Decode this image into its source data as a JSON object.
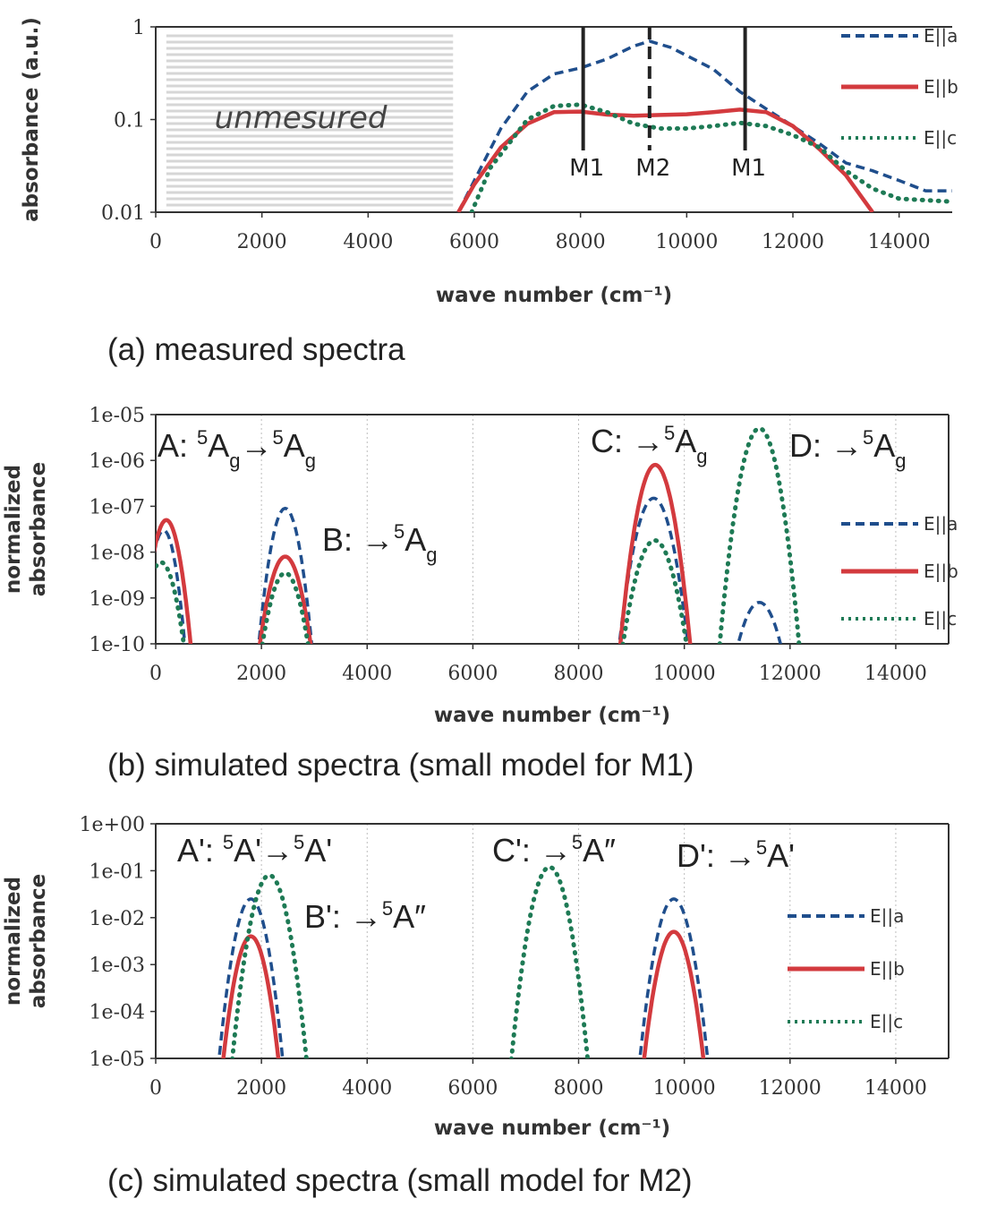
{
  "colors": {
    "a": "#1f4e8c",
    "b": "#d33a3e",
    "c": "#1e7a55",
    "frame": "#333333",
    "grid": "#bdbdbd",
    "hatch": "#d6d6d6"
  },
  "legend": {
    "a": "E||a",
    "b": "E||b",
    "c": "E||c"
  },
  "chart_data": [
    {
      "type": "line",
      "caption": "(a) measured spectra",
      "xlabel": "wave number (cm⁻¹)",
      "ylabel": "absorbance (a.u.)",
      "xlim": [
        0,
        15000
      ],
      "ylim": [
        0.01,
        1
      ],
      "yscale": "log",
      "xticks": [
        "0",
        "2000",
        "4000",
        "6000",
        "8000",
        "10000",
        "12000",
        "14000"
      ],
      "yticks": [
        "0.01",
        "0.1",
        "1"
      ],
      "grid": false,
      "legend": "right",
      "shaded_region": {
        "label": "unmesured",
        "x": [
          200,
          5600
        ]
      },
      "markers": [
        {
          "label": "M1",
          "x": 8050,
          "style": "solid"
        },
        {
          "label": "M2",
          "x": 9300,
          "style": "dashed"
        },
        {
          "label": "M1",
          "x": 11100,
          "style": "solid"
        }
      ],
      "series": [
        {
          "name": "E||a",
          "style": "dashed",
          "points": [
            [
              5700,
              0.01
            ],
            [
              6000,
              0.022
            ],
            [
              6500,
              0.08
            ],
            [
              7000,
              0.2
            ],
            [
              7500,
              0.31
            ],
            [
              8000,
              0.36
            ],
            [
              8500,
              0.45
            ],
            [
              9000,
              0.62
            ],
            [
              9300,
              0.7
            ],
            [
              9700,
              0.6
            ],
            [
              10500,
              0.35
            ],
            [
              11000,
              0.2
            ],
            [
              11500,
              0.13
            ],
            [
              12000,
              0.085
            ],
            [
              12500,
              0.055
            ],
            [
              13000,
              0.034
            ],
            [
              13500,
              0.028
            ],
            [
              14000,
              0.022
            ],
            [
              14500,
              0.017
            ],
            [
              15000,
              0.017
            ]
          ]
        },
        {
          "name": "E||b",
          "style": "solid",
          "points": [
            [
              5700,
              0.01
            ],
            [
              6000,
              0.02
            ],
            [
              6500,
              0.05
            ],
            [
              7000,
              0.09
            ],
            [
              7500,
              0.12
            ],
            [
              8000,
              0.122
            ],
            [
              8500,
              0.113
            ],
            [
              9000,
              0.11
            ],
            [
              9500,
              0.112
            ],
            [
              10000,
              0.114
            ],
            [
              10500,
              0.12
            ],
            [
              11000,
              0.128
            ],
            [
              11500,
              0.12
            ],
            [
              12000,
              0.085
            ],
            [
              12500,
              0.048
            ],
            [
              13000,
              0.025
            ],
            [
              13500,
              0.01
            ]
          ]
        },
        {
          "name": "E||c",
          "style": "dotted",
          "points": [
            [
              5950,
              0.01
            ],
            [
              6300,
              0.03
            ],
            [
              7000,
              0.1
            ],
            [
              7500,
              0.14
            ],
            [
              8000,
              0.145
            ],
            [
              8500,
              0.12
            ],
            [
              9000,
              0.09
            ],
            [
              9500,
              0.08
            ],
            [
              10000,
              0.08
            ],
            [
              10500,
              0.085
            ],
            [
              11000,
              0.092
            ],
            [
              11500,
              0.085
            ],
            [
              12000,
              0.068
            ],
            [
              12500,
              0.05
            ],
            [
              13000,
              0.028
            ],
            [
              13500,
              0.018
            ],
            [
              14000,
              0.014
            ],
            [
              15000,
              0.013
            ]
          ]
        }
      ]
    },
    {
      "type": "line",
      "caption": "(b) simulated spectra (small model for M1)",
      "xlabel": "wave number (cm⁻¹)",
      "ylabel": [
        "normalized",
        "absorbance"
      ],
      "xlim": [
        0,
        15000
      ],
      "ylim": [
        1e-10,
        1e-05
      ],
      "yscale": "log",
      "xticks": [
        "0",
        "2000",
        "4000",
        "6000",
        "8000",
        "10000",
        "12000",
        "14000"
      ],
      "yticks": [
        "1e-10",
        "1e-09",
        "1e-08",
        "1e-07",
        "1e-06",
        "1e-05"
      ],
      "grid": "vertical",
      "legend": "right",
      "annotations": [
        {
          "id": "A",
          "main": "A: ",
          "parts": [
            [
              "sup",
              "5"
            ],
            [
              "text",
              "A"
            ],
            [
              "sub",
              "g"
            ],
            [
              "text",
              "→"
            ],
            [
              "sup",
              "5"
            ],
            [
              "text",
              "A"
            ],
            [
              "sub",
              "g"
            ]
          ]
        },
        {
          "id": "B",
          "main": "B: →",
          "parts": [
            [
              "sup",
              "5"
            ],
            [
              "text",
              "A"
            ],
            [
              "sub",
              "g"
            ]
          ]
        },
        {
          "id": "C",
          "main": "C: →",
          "parts": [
            [
              "sup",
              "5"
            ],
            [
              "text",
              "A"
            ],
            [
              "sub",
              "g"
            ]
          ]
        },
        {
          "id": "D",
          "main": "D: →",
          "parts": [
            [
              "sup",
              "5"
            ],
            [
              "text",
              "A"
            ],
            [
              "sub",
              "g"
            ]
          ]
        }
      ],
      "series": [
        {
          "name": "E||a",
          "style": "dashed",
          "peaks": [
            {
              "center": 150,
              "peak": 3e-08,
              "width": 400
            },
            {
              "center": 2450,
              "peak": 9e-08,
              "width": 500
            },
            {
              "center": 9420,
              "peak": 1.5e-07,
              "width": 650
            },
            {
              "center": 11420,
              "peak": 8e-10,
              "width": 400
            }
          ]
        },
        {
          "name": "E||b",
          "style": "solid",
          "peaks": [
            {
              "center": 200,
              "peak": 5e-08,
              "width": 460
            },
            {
              "center": 2450,
              "peak": 8e-09,
              "width": 480
            },
            {
              "center": 9450,
              "peak": 8e-07,
              "width": 660
            }
          ]
        },
        {
          "name": "E||c",
          "style": "dotted",
          "peaks": [
            {
              "center": 100,
              "peak": 6e-09,
              "width": 430
            },
            {
              "center": 2450,
              "peak": 3.5e-09,
              "width": 430
            },
            {
              "center": 9440,
              "peak": 1.8e-08,
              "width": 600
            },
            {
              "center": 11420,
              "peak": 5e-06,
              "width": 750
            }
          ]
        }
      ]
    },
    {
      "type": "line",
      "caption": "(c) simulated spectra (small model for M2)",
      "xlabel": "wave number (cm⁻¹)",
      "ylabel": [
        "normalized",
        "absorbance"
      ],
      "xlim": [
        0,
        15000
      ],
      "ylim": [
        1e-05,
        1
      ],
      "yscale": "log",
      "xticks": [
        "0",
        "2000",
        "4000",
        "6000",
        "8000",
        "10000",
        "12000",
        "14000"
      ],
      "yticks": [
        "1e-05",
        "1e-04",
        "1e-03",
        "1e-02",
        "1e-01",
        "1e+00"
      ],
      "grid": "vertical",
      "legend": "right",
      "annotations": [
        {
          "id": "A'",
          "main": "A': ",
          "parts": [
            [
              "sup",
              "5"
            ],
            [
              "text",
              "A'→"
            ],
            [
              "sup",
              "5"
            ],
            [
              "text",
              "A'"
            ]
          ]
        },
        {
          "id": "B'",
          "main": "B': →",
          "parts": [
            [
              "sup",
              "5"
            ],
            [
              "text",
              "A″"
            ]
          ]
        },
        {
          "id": "C'",
          "main": "C': →",
          "parts": [
            [
              "sup",
              "5"
            ],
            [
              "text",
              "A″"
            ]
          ]
        },
        {
          "id": "D'",
          "main": "D': →",
          "parts": [
            [
              "sup",
              "5"
            ],
            [
              "text",
              "A'"
            ]
          ]
        }
      ],
      "series": [
        {
          "name": "E||a",
          "style": "dashed",
          "peaks": [
            {
              "center": 1800,
              "peak": 0.025,
              "width": 600
            },
            {
              "center": 9800,
              "peak": 0.025,
              "width": 640
            }
          ]
        },
        {
          "name": "E||b",
          "style": "solid",
          "peaks": [
            {
              "center": 1800,
              "peak": 0.004,
              "width": 520
            },
            {
              "center": 9800,
              "peak": 0.005,
              "width": 560
            }
          ]
        },
        {
          "name": "E||c",
          "style": "dotted",
          "peaks": [
            {
              "center": 2150,
              "peak": 0.08,
              "width": 700
            },
            {
              "center": 7450,
              "peak": 0.12,
              "width": 720
            }
          ]
        }
      ]
    }
  ]
}
